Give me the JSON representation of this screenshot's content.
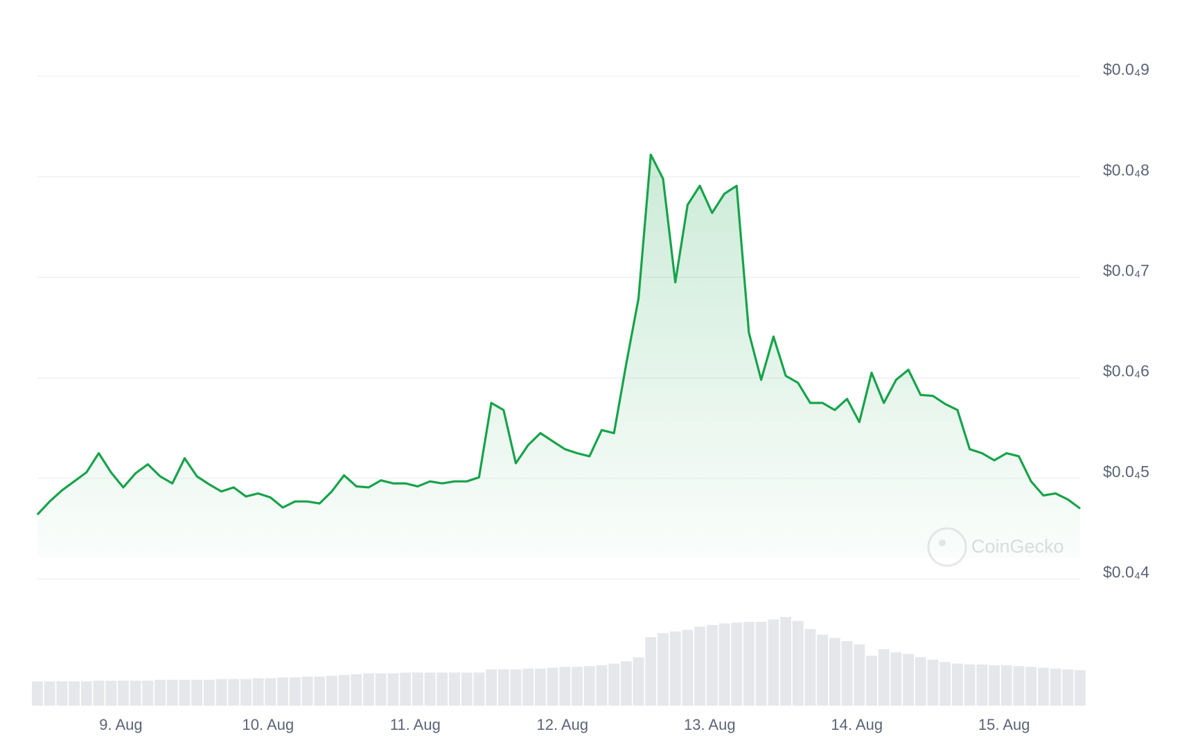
{
  "chart_data": {
    "type": "line",
    "watermark": "CoinGecko",
    "xlim": [
      0,
      85
    ],
    "xticks": [
      {
        "value": 6.8,
        "label": "9. Aug"
      },
      {
        "value": 18.8,
        "label": "10. Aug"
      },
      {
        "value": 30.8,
        "label": "11. Aug"
      },
      {
        "value": 42.8,
        "label": "12. Aug"
      },
      {
        "value": 54.8,
        "label": "13. Aug"
      },
      {
        "value": 66.8,
        "label": "14. Aug"
      },
      {
        "value": 78.8,
        "label": "15. Aug"
      }
    ],
    "ylim": [
      4e-05,
      9e-05
    ],
    "yticks": [
      {
        "value": 4e-05,
        "label": "$0.0₄4"
      },
      {
        "value": 5e-05,
        "label": "$0.0₄5"
      },
      {
        "value": 6e-05,
        "label": "$0.0₄6"
      },
      {
        "value": 7e-05,
        "label": "$0.0₄7"
      },
      {
        "value": 8e-05,
        "label": "$0.0₄8"
      },
      {
        "value": 9e-05,
        "label": "$0.0₄9"
      }
    ],
    "grid": true,
    "series": [
      {
        "color": "#16a34a",
        "values": [
          4.64e-05,
          4.77e-05,
          4.88e-05,
          4.97e-05,
          5.06e-05,
          5.25e-05,
          5.06e-05,
          4.91e-05,
          5.05e-05,
          5.14e-05,
          5.02e-05,
          4.95e-05,
          5.2e-05,
          5.02e-05,
          4.94e-05,
          4.87e-05,
          4.91e-05,
          4.82e-05,
          4.85e-05,
          4.81e-05,
          4.71e-05,
          4.77e-05,
          4.77e-05,
          4.75e-05,
          4.87e-05,
          5.03e-05,
          4.92e-05,
          4.91e-05,
          4.98e-05,
          4.95e-05,
          4.95e-05,
          4.92e-05,
          4.97e-05,
          4.95e-05,
          4.97e-05,
          4.97e-05,
          5.01e-05,
          5.75e-05,
          5.68e-05,
          5.15e-05,
          5.33e-05,
          5.45e-05,
          5.37e-05,
          5.29e-05,
          5.25e-05,
          5.22e-05,
          5.48e-05,
          5.45e-05,
          6.14e-05,
          6.79e-05,
          8.22e-05,
          7.98e-05,
          6.95e-05,
          7.72e-05,
          7.91e-05,
          7.64e-05,
          7.83e-05,
          7.91e-05,
          6.45e-05,
          5.98e-05,
          6.41e-05,
          6.02e-05,
          5.95e-05,
          5.75e-05,
          5.75e-05,
          5.68e-05,
          5.79e-05,
          5.56e-05,
          6.05e-05,
          5.75e-05,
          5.98e-05,
          6.08e-05,
          5.83e-05,
          5.82e-05,
          5.74e-05,
          5.68e-05,
          5.29e-05,
          5.25e-05,
          5.18e-05,
          5.25e-05,
          5.22e-05,
          4.97e-05,
          4.83e-05,
          4.85e-05,
          4.79e-05,
          4.7e-05
        ]
      },
      {
        "color": "#e5e7eb",
        "type": "bar",
        "values": [
          30,
          30,
          30,
          30,
          30,
          31,
          31,
          31,
          31,
          31,
          32,
          32,
          32,
          32,
          32,
          33,
          33,
          33,
          34,
          34,
          35,
          35,
          36,
          36,
          37,
          38,
          39,
          40,
          40,
          40,
          41,
          41,
          41,
          41,
          41,
          41,
          41,
          45,
          45,
          45,
          46,
          46,
          47,
          48,
          48,
          49,
          50,
          52,
          55,
          60,
          85,
          90,
          92,
          94,
          98,
          100,
          102,
          103,
          104,
          104,
          107,
          110,
          105,
          95,
          88,
          84,
          80,
          76,
          62,
          70,
          66,
          64,
          60,
          57,
          54,
          52,
          51,
          51,
          50,
          50,
          49,
          48,
          47,
          46,
          45,
          44
        ]
      }
    ]
  }
}
